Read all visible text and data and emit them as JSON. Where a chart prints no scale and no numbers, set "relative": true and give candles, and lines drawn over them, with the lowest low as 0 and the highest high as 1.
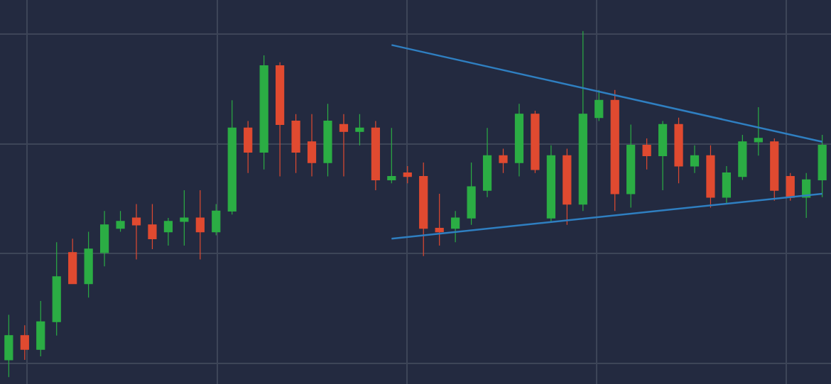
{
  "chart_data": {
    "type": "candlestick",
    "relative": true,
    "grid": true,
    "categories": [
      null,
      null,
      null,
      null,
      null,
      null,
      null,
      null,
      null,
      null,
      null,
      null,
      null,
      null,
      null,
      null,
      null,
      null,
      null,
      null,
      null,
      null,
      null,
      null,
      null,
      null,
      null,
      null,
      null,
      null,
      null,
      null,
      null,
      null,
      null,
      null,
      null,
      null,
      null,
      null,
      null,
      null,
      null,
      null,
      null,
      null,
      null,
      null,
      null,
      null,
      null,
      null
    ],
    "ohlc": [
      [
        0.05,
        0.18,
        0,
        0.12
      ],
      [
        0.12,
        0.15,
        0.05,
        0.08
      ],
      [
        0.08,
        0.22,
        0.06,
        0.16
      ],
      [
        0.16,
        0.39,
        0.12,
        0.29
      ],
      [
        0.36,
        0.4,
        0.27,
        0.27
      ],
      [
        0.27,
        0.42,
        0.23,
        0.37
      ],
      [
        0.36,
        0.48,
        0.32,
        0.44
      ],
      [
        0.43,
        0.48,
        0.42,
        0.45
      ],
      [
        0.46,
        0.5,
        0.34,
        0.44
      ],
      [
        0.44,
        0.5,
        0.37,
        0.4
      ],
      [
        0.42,
        0.46,
        0.38,
        0.45
      ],
      [
        0.45,
        0.54,
        0.38,
        0.46
      ],
      [
        0.46,
        0.54,
        0.34,
        0.42
      ],
      [
        0.42,
        0.5,
        0.41,
        0.48
      ],
      [
        0.48,
        0.8,
        0.47,
        0.72
      ],
      [
        0.72,
        0.74,
        0.59,
        0.65
      ],
      [
        0.65,
        0.93,
        0.6,
        0.9
      ],
      [
        0.9,
        0.91,
        0.58,
        0.73
      ],
      [
        0.74,
        0.76,
        0.59,
        0.65
      ],
      [
        0.68,
        0.76,
        0.58,
        0.62
      ],
      [
        0.62,
        0.79,
        0.58,
        0.74
      ],
      [
        0.73,
        0.76,
        0.58,
        0.71
      ],
      [
        0.71,
        0.76,
        0.67,
        0.72
      ],
      [
        0.72,
        0.74,
        0.54,
        0.57
      ],
      [
        0.57,
        0.72,
        0.56,
        0.58
      ],
      [
        0.59,
        0.61,
        0.56,
        0.58
      ],
      [
        0.58,
        0.62,
        0.35,
        0.43
      ],
      [
        0.43,
        0.53,
        0.38,
        0.42
      ],
      [
        0.43,
        0.48,
        0.39,
        0.46
      ],
      [
        0.46,
        0.62,
        0.44,
        0.55
      ],
      [
        0.54,
        0.72,
        0.52,
        0.64
      ],
      [
        0.64,
        0.66,
        0.59,
        0.62
      ],
      [
        0.62,
        0.79,
        0.58,
        0.76
      ],
      [
        0.76,
        0.77,
        0.59,
        0.6
      ],
      [
        0.46,
        0.67,
        0.45,
        0.64
      ],
      [
        0.64,
        0.66,
        0.44,
        0.5
      ],
      [
        0.5,
        1,
        0.48,
        0.76
      ],
      [
        0.75,
        0.83,
        0.74,
        0.8
      ],
      [
        0.8,
        0.83,
        0.48,
        0.53
      ],
      [
        0.53,
        0.73,
        0.49,
        0.67
      ],
      [
        0.67,
        0.69,
        0.6,
        0.64
      ],
      [
        0.64,
        0.74,
        0.54,
        0.73
      ],
      [
        0.73,
        0.75,
        0.56,
        0.61
      ],
      [
        0.61,
        0.67,
        0.59,
        0.64
      ],
      [
        0.64,
        0.67,
        0.49,
        0.52
      ],
      [
        0.52,
        0.61,
        0.5,
        0.59
      ],
      [
        0.58,
        0.7,
        0.57,
        0.68
      ],
      [
        0.68,
        0.78,
        0.64,
        0.69
      ],
      [
        0.68,
        0.69,
        0.51,
        0.54
      ],
      [
        0.58,
        0.59,
        0.51,
        0.52
      ],
      [
        0.52,
        0.59,
        0.46,
        0.57
      ],
      [
        0.57,
        0.7,
        0.52,
        0.67
      ]
    ],
    "colors": [
      "#2bad44",
      "#e04a30",
      "#2bad44",
      "#2bad44",
      "#e04a30",
      "#2bad44",
      "#2bad44",
      "#2bad44",
      "#e04a30",
      "#e04a30",
      "#2bad44",
      "#2bad44",
      "#e04a30",
      "#2bad44",
      "#2bad44",
      "#e04a30",
      "#2bad44",
      "#e04a30",
      "#e04a30",
      "#e04a30",
      "#2bad44",
      "#e04a30",
      "#2bad44",
      "#e04a30",
      "#2bad44",
      "#e04a30",
      "#e04a30",
      "#e04a30",
      "#2bad44",
      "#2bad44",
      "#2bad44",
      "#e04a30",
      "#2bad44",
      "#e04a30",
      "#2bad44",
      "#e04a30",
      "#2bad44",
      "#2bad44",
      "#e04a30",
      "#2bad44",
      "#e04a30",
      "#2bad44",
      "#e04a30",
      "#2bad44",
      "#e04a30",
      "#2bad44",
      "#2bad44",
      "#2bad44",
      "#e04a30",
      "#e04a30",
      "#2bad44",
      "#2bad44"
    ],
    "series": [
      {
        "type": "line",
        "values": [
          null,
          null,
          null,
          null,
          null,
          null,
          null,
          null,
          null,
          null,
          null,
          null,
          null,
          null,
          null,
          null,
          null,
          null,
          null,
          null,
          null,
          null,
          null,
          null,
          0.96,
          null,
          null,
          null,
          null,
          null,
          null,
          null,
          null,
          null,
          null,
          null,
          null,
          null,
          null,
          null,
          null,
          null,
          null,
          null,
          null,
          null,
          null,
          null,
          null,
          null,
          null,
          0.68
        ],
        "color": "#2f7fc1"
      },
      {
        "type": "line",
        "values": [
          null,
          null,
          null,
          null,
          null,
          null,
          null,
          null,
          null,
          null,
          null,
          null,
          null,
          null,
          null,
          null,
          null,
          null,
          null,
          null,
          null,
          null,
          null,
          null,
          0.4,
          null,
          null,
          null,
          null,
          null,
          null,
          null,
          null,
          null,
          null,
          null,
          null,
          null,
          null,
          null,
          null,
          null,
          null,
          null,
          null,
          null,
          null,
          null,
          null,
          null,
          null,
          0.53
        ],
        "color": "#2f7fc1"
      }
    ]
  }
}
